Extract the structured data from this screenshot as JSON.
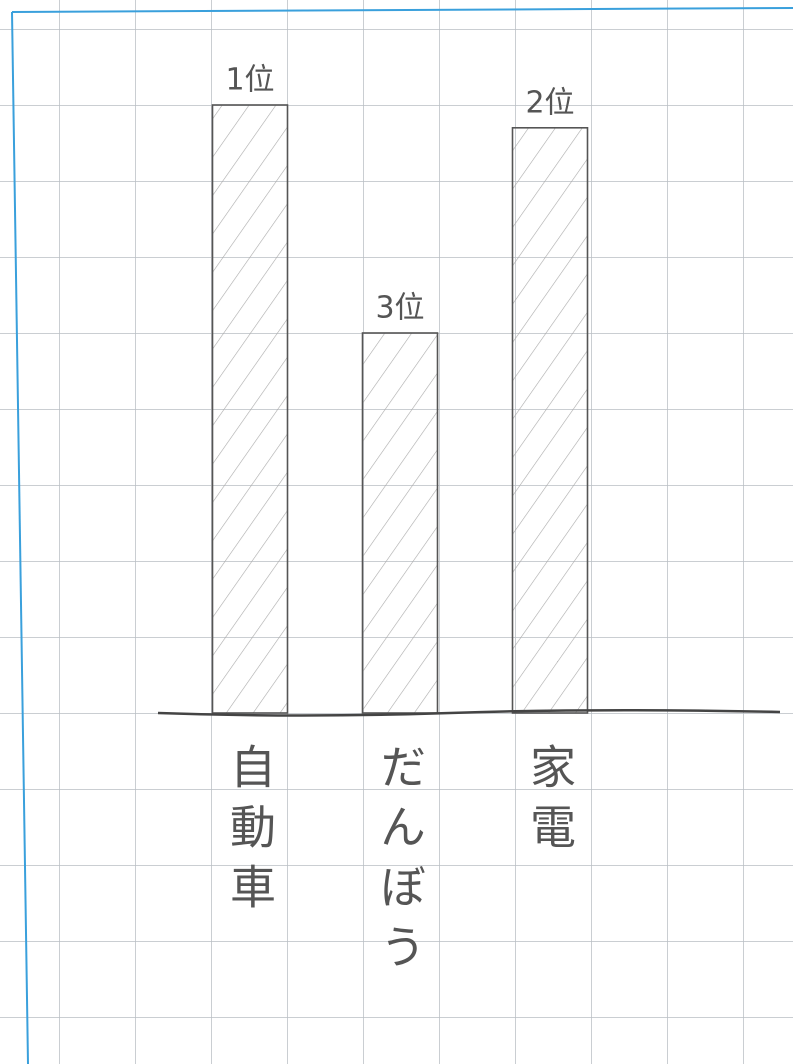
{
  "chart_data": {
    "type": "bar",
    "categories": [
      "自動車",
      "だんぼう",
      "家電"
    ],
    "values": [
      8,
      5,
      7.7
    ],
    "bar_labels": [
      "1位",
      "3位",
      "2位"
    ],
    "color": "#555555",
    "ylim": [
      0,
      9.25
    ]
  }
}
